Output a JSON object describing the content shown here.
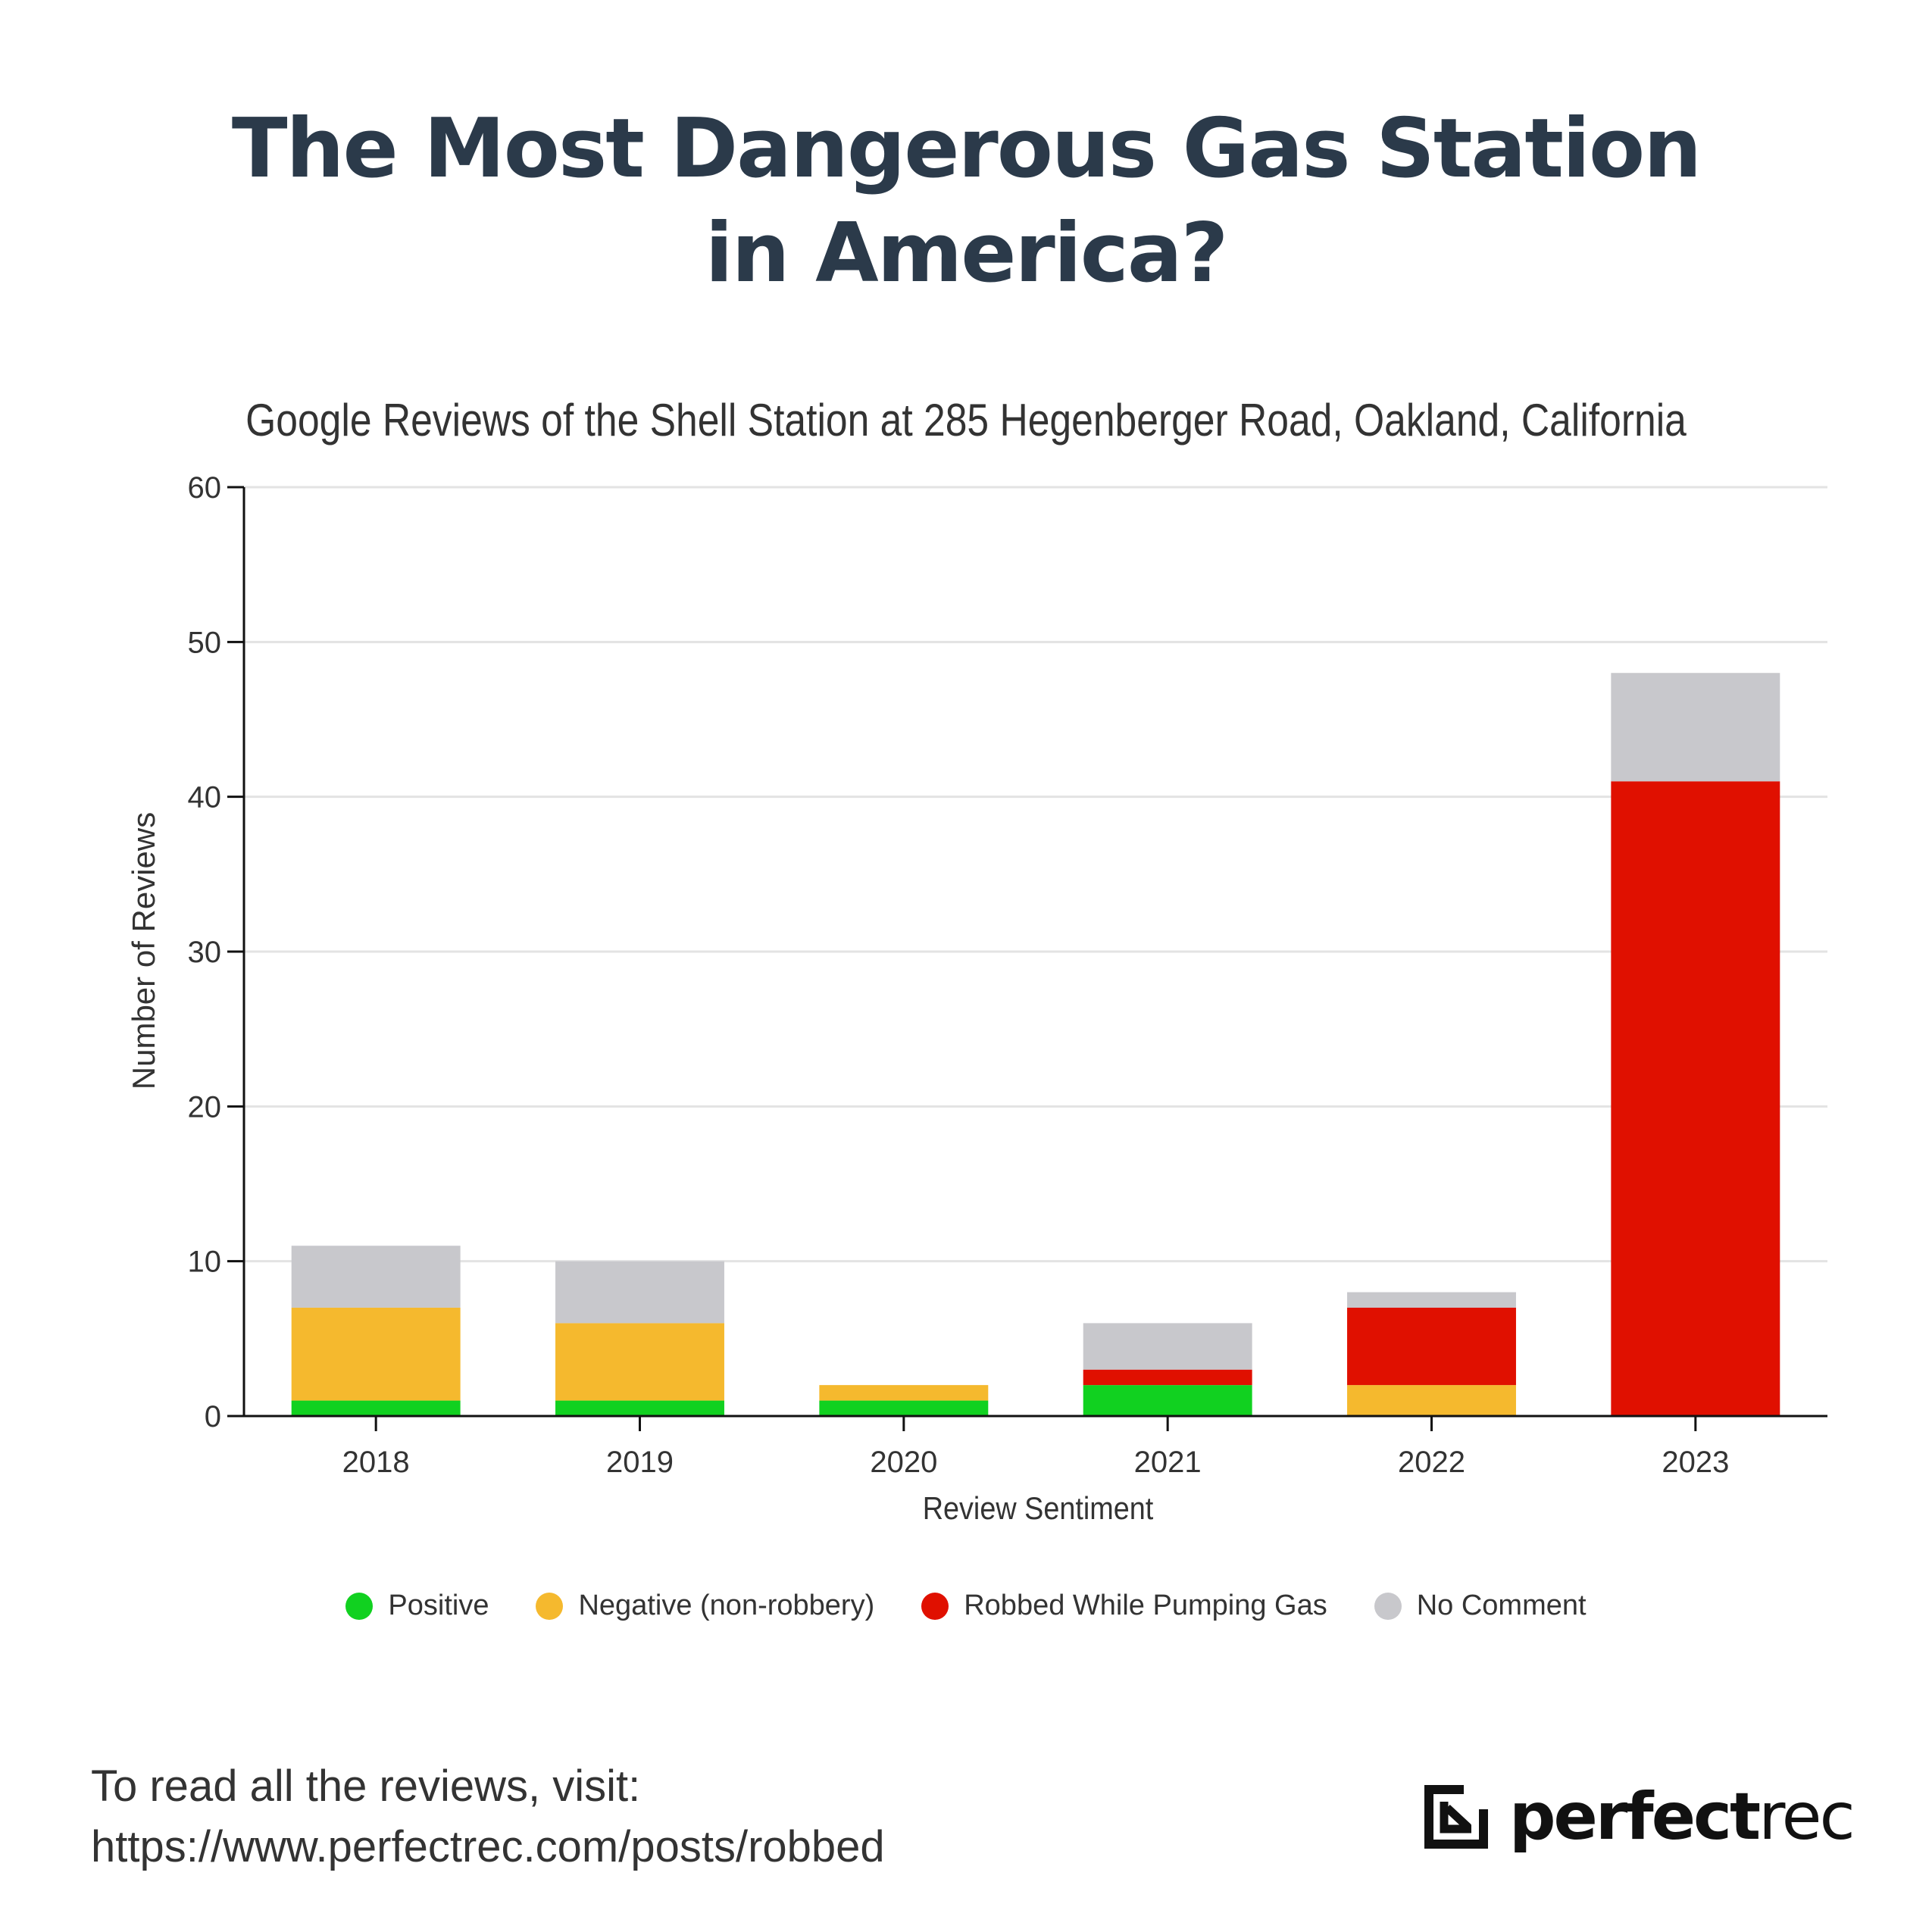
{
  "header": {
    "title_line1": "The Most Dangerous Gas Station",
    "title_line2": "in America?",
    "subtitle": "Google Reviews of the Shell Station at 285 Hegenberger Road, Oakland, California"
  },
  "chart_data": {
    "type": "bar",
    "stacked": true,
    "title": "Google Reviews of the Shell Station at 285 Hegenberger Road, Oakland, California",
    "xlabel": "Review Sentiment",
    "ylabel": "Number of Reviews",
    "ylim": [
      0,
      60
    ],
    "yticks": [
      0,
      10,
      20,
      30,
      40,
      50,
      60
    ],
    "grid": true,
    "legend_position": "bottom",
    "categories": [
      "2018",
      "2019",
      "2020",
      "2021",
      "2022",
      "2023"
    ],
    "series": [
      {
        "name": "Positive",
        "color": "#11d120",
        "values": [
          1,
          1,
          1,
          2,
          0,
          0
        ]
      },
      {
        "name": "Negative (non-robbery)",
        "color": "#f5b92e",
        "values": [
          6,
          5,
          1,
          0,
          2,
          0
        ]
      },
      {
        "name": "Robbed While Pumping Gas",
        "color": "#e01000",
        "values": [
          0,
          0,
          0,
          1,
          5,
          41
        ]
      },
      {
        "name": "No Comment",
        "color": "#c8c8cc",
        "values": [
          4,
          4,
          0,
          3,
          1,
          7
        ]
      }
    ]
  },
  "footer": {
    "line1": "To read all the reviews, visit:",
    "line2": "https://www.perfectrec.com/posts/robbed"
  },
  "logo": {
    "bold": "perfect",
    "light": "rec",
    "icon": "arrow-down-right-icon"
  }
}
